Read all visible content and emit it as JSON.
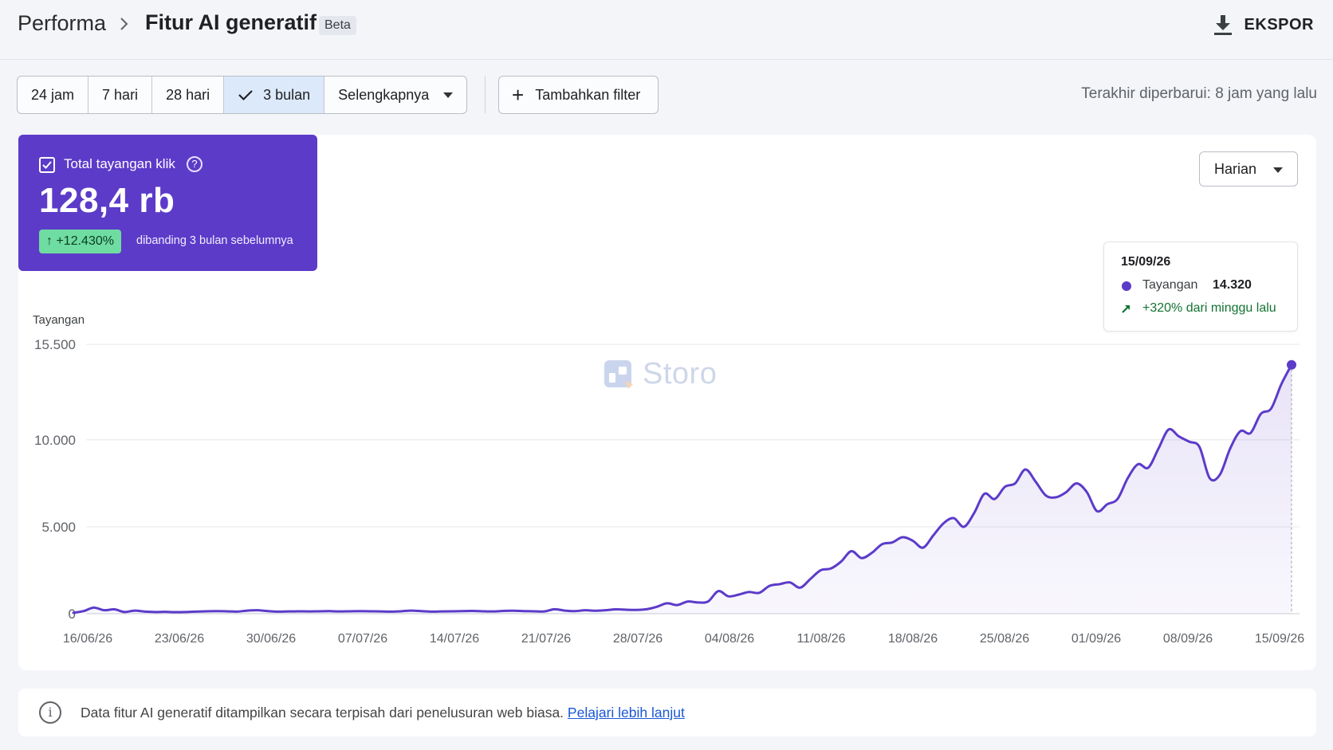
{
  "header": {
    "breadcrumb_root": "Performa",
    "title": "Fitur AI generatif",
    "badge": "Beta",
    "export_label": "EKSPOR"
  },
  "filters": {
    "ranges": [
      "24 jam",
      "7 hari",
      "28 hari",
      "3 bulan",
      "Selengkapnya"
    ],
    "active_range": "3 bulan",
    "add_filter_label": "Tambahkan filter",
    "updated_text": "Terakhir diperbarui: 8 jam yang lalu"
  },
  "metric": {
    "label": "Total tayangan klik",
    "value": "128,4 rb",
    "delta": "+12.430%",
    "comparison": "dibanding 3 bulan sebelumnya",
    "color": "#5c3bc9",
    "delta_color": "#6fdca1"
  },
  "granularity": {
    "label": "Harian"
  },
  "tooltip": {
    "date": "15/09/26",
    "series": "Tayangan",
    "value": "14.320",
    "change": "+320% dari minggu lalu"
  },
  "watermark": {
    "text": "Storo"
  },
  "chart_data": {
    "type": "area",
    "ylabel": "Tayangan",
    "ylim": [
      0,
      15500
    ],
    "y_ticks": [
      0,
      5000,
      10000,
      15500
    ],
    "y_tick_labels": [
      "0",
      "5.000",
      "10.000",
      "15.500"
    ],
    "x_tick_labels": [
      "16/06/26",
      "23/06/26",
      "30/06/26",
      "07/07/26",
      "14/07/26",
      "21/07/26",
      "28/07/26",
      "04/08/26",
      "11/08/26",
      "18/08/26",
      "25/08/26",
      "01/09/26",
      "08/09/26",
      "15/09/26"
    ],
    "grid": true,
    "series": [
      {
        "color": "#5c3bc9",
        "values": [
          50,
          150,
          350,
          200,
          250,
          100,
          180,
          120,
          100,
          110,
          90,
          100,
          120,
          140,
          150,
          140,
          120,
          180,
          200,
          150,
          120,
          130,
          140,
          130,
          140,
          150,
          130,
          140,
          150,
          140,
          130,
          120,
          140,
          180,
          150,
          120,
          130,
          140,
          150,
          160,
          140,
          130,
          160,
          170,
          150,
          140,
          130,
          260,
          180,
          150,
          200,
          170,
          200,
          250,
          230,
          220,
          260,
          400,
          600,
          500,
          700,
          650,
          700,
          1300,
          1000,
          1100,
          1250,
          1200,
          1600,
          1700,
          1800,
          1500,
          2000,
          2500,
          2600,
          3000,
          3600,
          3200,
          3500,
          4000,
          4100,
          4400,
          4200,
          3800,
          4500,
          5200,
          5500,
          5000,
          5800,
          6900,
          6600,
          7300,
          7500,
          8300,
          7600,
          6800,
          6700,
          7000,
          7500,
          7000,
          5900,
          6300,
          6600,
          7800,
          8600,
          8400,
          9500,
          10600,
          10200,
          9900,
          9600,
          7800,
          8000,
          9500,
          10500,
          10400,
          11500,
          11800,
          13200,
          14320
        ]
      }
    ]
  },
  "footer": {
    "info_text": "Data fitur AI generatif ditampilkan secara terpisah dari penelusuran web biasa.",
    "link_text": "Pelajari lebih lanjut"
  }
}
